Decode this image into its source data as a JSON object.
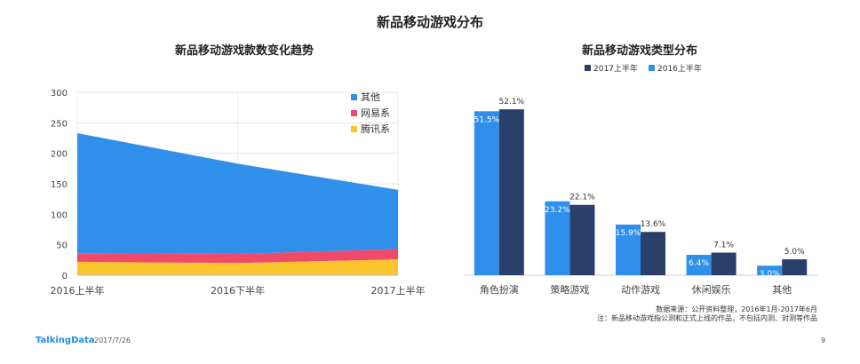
{
  "page_title": "新品移动游戏分布",
  "footer": {
    "brand": "TalkingData",
    "date": "2017/7/26",
    "page_number": "9"
  },
  "notes": {
    "source": "数据来源：公开资料整理，2016年1月-2017年6月",
    "remark": "注：新品移动游戏指公测和正式上线的作品，不包括内测、封测等作品"
  },
  "colors": {
    "blue": "#2f8fea",
    "red": "#ef4a6a",
    "yellow": "#fbc52d",
    "navy": "#2b3f6b"
  },
  "chart_data": [
    {
      "type": "area",
      "stacked": true,
      "title": "新品移动游戏款数变化趋势",
      "categories": [
        "2016上半年",
        "2016下半年",
        "2017上半年"
      ],
      "series": [
        {
          "name": "腾讯系",
          "values": [
            22,
            20,
            26
          ]
        },
        {
          "name": "网易系",
          "values": [
            14,
            15,
            17
          ]
        },
        {
          "name": "其他",
          "values": [
            197,
            148,
            97
          ]
        }
      ],
      "legend": [
        "其他",
        "网易系",
        "腾讯系"
      ],
      "ylim": [
        0,
        300
      ],
      "yticks": [
        "0",
        "50",
        "100",
        "150",
        "200",
        "250",
        "300"
      ],
      "grid": true,
      "legend_position": "top-right"
    },
    {
      "type": "bar",
      "title": "新品移动游戏类型分布",
      "categories": [
        "角色扮演",
        "策略游戏",
        "动作游戏",
        "休闲娱乐",
        "其他"
      ],
      "series": [
        {
          "name": "2016上半年",
          "values": [
            51.5,
            23.2,
            15.9,
            6.4,
            3.0
          ],
          "labels": [
            "51.5%",
            "23.2%",
            "15.9%",
            "6.4%",
            "3.0%"
          ]
        },
        {
          "name": "2017上半年",
          "values": [
            52.1,
            22.1,
            13.6,
            7.1,
            5.0
          ],
          "labels": [
            "52.1%",
            "22.1%",
            "13.6%",
            "7.1%",
            "5.0%"
          ]
        }
      ],
      "legend": [
        "2017上半年",
        "2016上半年"
      ],
      "ylim": [
        0,
        60
      ],
      "legend_position": "top-right"
    }
  ]
}
